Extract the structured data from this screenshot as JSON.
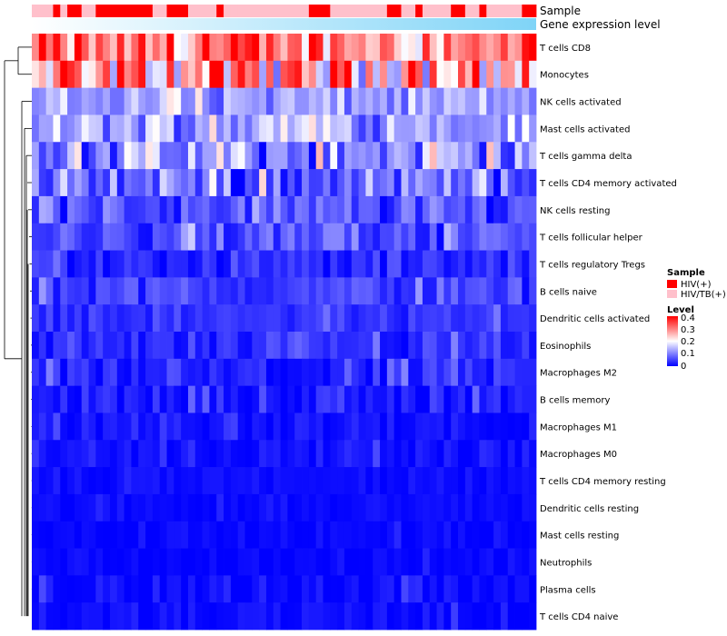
{
  "chart_data": {
    "type": "heatmap",
    "annotation_tracks": [
      "Sample",
      "Gene expression level"
    ],
    "rows": [
      "T cells CD8",
      "Monocytes",
      "NK cells activated",
      "Mast cells activated",
      "T cells gamma delta",
      "T cells CD4 memory activated",
      "NK cells resting",
      "T cells follicular helper",
      "T cells regulatory  Tregs",
      "B cells naive",
      "Dendritic cells activated",
      "Eosinophils",
      "Macrophages M2",
      "B cells memory",
      "Macrophages M1",
      "Macrophages M0",
      "T cells CD4 memory resting",
      "Dendritic cells resting",
      "Mast cells resting",
      "Neutrophils",
      "Plasma cells",
      "T cells CD4 naive"
    ],
    "sample_groups": [
      1,
      1,
      1,
      0,
      1,
      0,
      0,
      1,
      1,
      0,
      0,
      0,
      0,
      0,
      0,
      0,
      0,
      1,
      1,
      0,
      0,
      0,
      1,
      1,
      1,
      1,
      0,
      1,
      1,
      1,
      1,
      1,
      1,
      1,
      1,
      1,
      1,
      1,
      1,
      0,
      0,
      0,
      1,
      1,
      1,
      1,
      1,
      1,
      1,
      1,
      0,
      0,
      1,
      1,
      0,
      1,
      1,
      1,
      1,
      0,
      0,
      1,
      1,
      0,
      1,
      1,
      1,
      1,
      1,
      0,
      0
    ],
    "expression_gradient": [
      "#ffffff",
      "#7fd4f7"
    ],
    "row_means": [
      0.3,
      0.26,
      0.12,
      0.13,
      0.1,
      0.08,
      0.06,
      0.06,
      0.03,
      0.05,
      0.04,
      0.03,
      0.02,
      0.02,
      0.015,
      0.015,
      0.008,
      0.008,
      0.005,
      0.004,
      0.01,
      0.008
    ],
    "row_spread": [
      0.1,
      0.12,
      0.05,
      0.06,
      0.08,
      0.07,
      0.05,
      0.04,
      0.03,
      0.03,
      0.02,
      0.03,
      0.03,
      0.03,
      0.02,
      0.02,
      0.01,
      0.01,
      0.01,
      0.01,
      0.02,
      0.02
    ],
    "legend": {
      "sample_title": "Sample",
      "sample_entries": [
        {
          "label": "HIV(+)",
          "color": "#ff0000"
        },
        {
          "label": "HIV/TB(+)",
          "color": "#ffc0cb"
        }
      ],
      "level_title": "Level",
      "level_ticks": [
        "0.4",
        "0.3",
        "0.2",
        "0.1",
        "0"
      ],
      "level_range": [
        0,
        0.4
      ],
      "level_colors": [
        "#0000ff",
        "#ffffff",
        "#ff0000"
      ]
    }
  }
}
